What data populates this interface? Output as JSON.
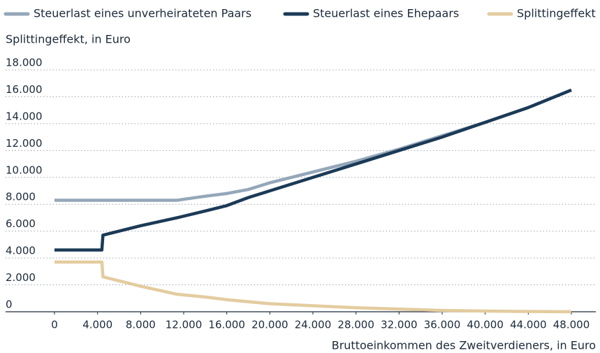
{
  "chart_data": {
    "type": "line",
    "y_label": "Splittingeffekt, in Euro",
    "x_label": "Bruttoeinkommen des Zweitverdieners, in Euro",
    "x": [
      0,
      4400,
      4500,
      8000,
      11400,
      14000,
      16000,
      18000,
      20000,
      24000,
      28000,
      32000,
      36000,
      40000,
      44000,
      48000
    ],
    "series": [
      {
        "name": "Steuerlast eines unverheirateten Paars",
        "color": "#94a7b9",
        "values": [
          8300,
          8300,
          8300,
          8300,
          8300,
          8600,
          8800,
          9100,
          9600,
          10400,
          11200,
          12100,
          13100,
          14100,
          15200,
          16500
        ]
      },
      {
        "name": "Steuerlast eines Ehepaars",
        "color": "#1b3a57",
        "values": [
          4600,
          4600,
          5700,
          6400,
          7000,
          7500,
          7900,
          8500,
          9000,
          10000,
          11000,
          12000,
          13000,
          14100,
          15200,
          16500
        ]
      },
      {
        "name": "Splittingeffekt",
        "color": "#e3cc9f",
        "values": [
          3700,
          3700,
          2600,
          1900,
          1300,
          1100,
          900,
          750,
          600,
          450,
          300,
          200,
          100,
          50,
          20,
          0
        ]
      }
    ],
    "xlim": [
      0,
      48000
    ],
    "xticks": [
      0,
      {
        "value": 4000,
        "label": "4.000"
      },
      {
        "value": 8000,
        "label": "8.000"
      },
      {
        "value": 12000,
        "label": "12.000"
      },
      {
        "value": 16000,
        "label": "16.000"
      },
      {
        "value": 20000,
        "label": "20.000"
      },
      {
        "value": 24000,
        "label": "24.000"
      },
      {
        "value": 28000,
        "label": "28.000"
      },
      {
        "value": 32000,
        "label": "32.000"
      },
      {
        "value": 36000,
        "label": "36.000"
      },
      {
        "value": 40000,
        "label": "40.000"
      },
      {
        "value": 44000,
        "label": "44.000"
      },
      {
        "value": 48000,
        "label": "48.000"
      }
    ],
    "ylim": [
      0,
      18000
    ],
    "yticks": [
      0,
      {
        "value": 2000,
        "label": "2.000"
      },
      {
        "value": 4000,
        "label": "4.000"
      },
      {
        "value": 6000,
        "label": "6.000"
      },
      {
        "value": 8000,
        "label": "8.000"
      },
      {
        "value": 10000,
        "label": "10.000"
      },
      {
        "value": 12000,
        "label": "12.000"
      },
      {
        "value": 14000,
        "label": "14.000"
      },
      {
        "value": 16000,
        "label": "16.000"
      },
      {
        "value": 18000,
        "label": "18.000"
      }
    ],
    "grid": true,
    "legend": "top"
  }
}
